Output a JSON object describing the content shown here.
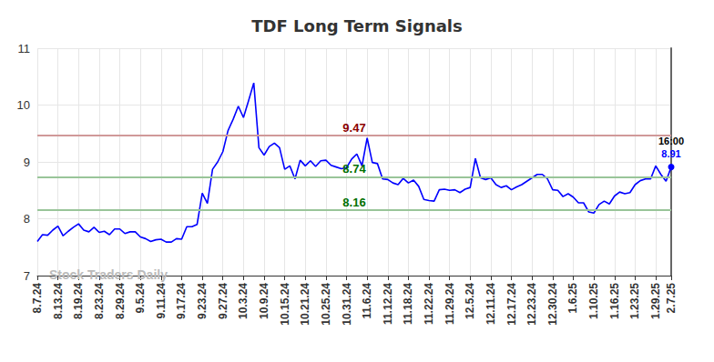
{
  "chart_data": {
    "type": "line",
    "title": "TDF Long Term Signals",
    "watermark": "Stock Traders Daily",
    "categories": [
      "8.7.24",
      null,
      null,
      null,
      "8.13.24",
      null,
      null,
      null,
      "8.19.24",
      null,
      null,
      null,
      "8.23.24",
      null,
      null,
      null,
      "8.29.24",
      null,
      null,
      null,
      "9.5.24",
      null,
      null,
      null,
      "9.11.24",
      null,
      null,
      null,
      "9.17.24",
      null,
      null,
      null,
      "9.23.24",
      null,
      null,
      null,
      "9.27.24",
      null,
      null,
      null,
      "10.3.24",
      null,
      null,
      null,
      "10.9.24",
      null,
      null,
      null,
      "10.15.24",
      null,
      null,
      null,
      "10.21.24",
      null,
      null,
      null,
      "10.25.24",
      null,
      null,
      null,
      "10.31.24",
      null,
      null,
      null,
      "11.6.24",
      null,
      null,
      null,
      "11.12.24",
      null,
      null,
      null,
      "11.18.24",
      null,
      null,
      null,
      "11.22.24",
      null,
      null,
      null,
      "11.29.24",
      null,
      null,
      null,
      "12.5.24",
      null,
      null,
      null,
      "12.11.24",
      null,
      null,
      null,
      "12.17.24",
      null,
      null,
      null,
      "12.23.24",
      null,
      null,
      null,
      "12.30.24",
      null,
      null,
      null,
      "1.6.25",
      null,
      null,
      null,
      "1.10.25",
      null,
      null,
      null,
      "1.16.25",
      null,
      null,
      null,
      "1.23.25",
      null,
      null,
      null,
      "1.29.25",
      null,
      null,
      "2.7.25"
    ],
    "values": [
      7.6,
      7.72,
      7.71,
      7.8,
      7.87,
      7.7,
      7.78,
      7.85,
      7.91,
      7.8,
      7.77,
      7.85,
      7.76,
      7.78,
      7.72,
      7.82,
      7.82,
      7.74,
      7.77,
      7.77,
      7.68,
      7.65,
      7.6,
      7.63,
      7.64,
      7.59,
      7.59,
      7.65,
      7.64,
      7.86,
      7.86,
      7.9,
      8.45,
      8.27,
      8.87,
      9.0,
      9.18,
      9.55,
      9.75,
      9.98,
      9.78,
      10.08,
      10.39,
      9.25,
      9.12,
      9.27,
      9.33,
      9.25,
      8.87,
      8.93,
      8.7,
      9.03,
      8.93,
      9.02,
      8.92,
      9.02,
      9.03,
      8.94,
      8.91,
      8.88,
      8.9,
      9.05,
      9.14,
      8.93,
      9.42,
      8.99,
      8.97,
      8.7,
      8.69,
      8.63,
      8.6,
      8.71,
      8.63,
      8.68,
      8.57,
      8.34,
      8.32,
      8.31,
      8.51,
      8.52,
      8.5,
      8.51,
      8.46,
      8.52,
      8.55,
      9.06,
      8.72,
      8.69,
      8.72,
      8.6,
      8.55,
      8.58,
      8.51,
      8.56,
      8.6,
      8.66,
      8.72,
      8.78,
      8.78,
      8.7,
      8.51,
      8.5,
      8.39,
      8.44,
      8.38,
      8.28,
      8.28,
      8.12,
      8.1,
      8.25,
      8.31,
      8.26,
      8.4,
      8.47,
      8.44,
      8.46,
      8.6,
      8.67,
      8.7,
      8.7,
      8.93,
      8.78,
      8.66,
      8.91
    ],
    "color": "#0000ff",
    "last_label": "16:00",
    "lines": [
      {
        "value": 9.47,
        "color": "#8b0000"
      },
      {
        "value": 8.74,
        "color": "#007000"
      },
      {
        "value": 8.16,
        "color": "#007000"
      }
    ],
    "ylim": [
      7,
      11
    ],
    "yticks": [
      7,
      8,
      9,
      10,
      11
    ],
    "grid": true
  }
}
